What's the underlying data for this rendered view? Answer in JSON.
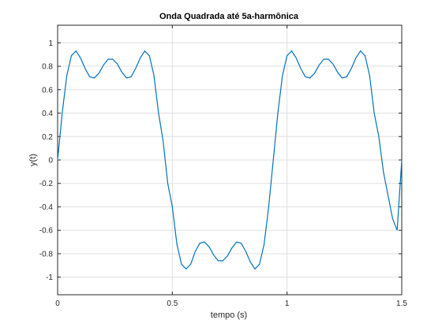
{
  "chart_data": {
    "type": "line",
    "title": "Onda Quadrada até 5a-harmônica",
    "xlabel": "tempo (s)",
    "ylabel": "y(t)",
    "xlim": [
      0,
      1.5
    ],
    "ylim": [
      -1.15,
      1.15
    ],
    "xticks": [
      0,
      0.5,
      1,
      1.5
    ],
    "xtick_labels": [
      "0",
      "0.5",
      "1",
      "1.5"
    ],
    "yticks": [
      -1,
      -0.8,
      -0.6,
      -0.4,
      -0.2,
      0,
      0.2,
      0.4,
      0.6,
      0.8,
      1
    ],
    "ytick_labels": [
      "-1",
      "-0.8",
      "-0.6",
      "-0.4",
      "-0.2",
      "0",
      "0.2",
      "0.4",
      "0.6",
      "0.8",
      "1"
    ],
    "grid": true,
    "series": [
      {
        "color": "#0072bd",
        "x": [
          0,
          0.02,
          0.04,
          0.06,
          0.08,
          0.1,
          0.12,
          0.14,
          0.16,
          0.18,
          0.2,
          0.22,
          0.24,
          0.26,
          0.28,
          0.3,
          0.32,
          0.34,
          0.36,
          0.38,
          0.4,
          0.42,
          0.44,
          0.46,
          0.48,
          0.5,
          0.52,
          0.54,
          0.56,
          0.58,
          0.6,
          0.62,
          0.64,
          0.66,
          0.68,
          0.7,
          0.72,
          0.74,
          0.76,
          0.78,
          0.8,
          0.82,
          0.84,
          0.86,
          0.88,
          0.9,
          0.92,
          0.94,
          0.96,
          0.98,
          1.0,
          1.02,
          1.04,
          1.06,
          1.08,
          1.1,
          1.12,
          1.14,
          1.16,
          1.18,
          1.2,
          1.22,
          1.24,
          1.26,
          1.28,
          1.3,
          1.32,
          1.34,
          1.36,
          1.38,
          1.4,
          1.42,
          1.44,
          1.46,
          1.48,
          1.5
        ],
        "y": [
          0,
          0.4,
          0.72,
          0.89,
          0.93,
          0.87,
          0.78,
          0.71,
          0.7,
          0.74,
          0.81,
          0.86,
          0.86,
          0.82,
          0.75,
          0.7,
          0.71,
          0.78,
          0.87,
          0.93,
          0.89,
          0.72,
          0.4,
          0.16,
          -0.2,
          -0.4,
          -0.72,
          -0.89,
          -0.93,
          -0.89,
          -0.78,
          -0.71,
          -0.7,
          -0.74,
          -0.81,
          -0.86,
          -0.86,
          -0.82,
          -0.75,
          -0.7,
          -0.71,
          -0.78,
          -0.87,
          -0.93,
          -0.89,
          -0.72,
          -0.4,
          0,
          0.4,
          0.72,
          0.89,
          0.93,
          0.87,
          0.78,
          0.71,
          0.7,
          0.74,
          0.81,
          0.86,
          0.86,
          0.82,
          0.75,
          0.7,
          0.71,
          0.78,
          0.87,
          0.93,
          0.89,
          0.72,
          0.4,
          0.2,
          -0.1,
          -0.3,
          -0.5,
          -0.6,
          0
        ]
      }
    ]
  }
}
